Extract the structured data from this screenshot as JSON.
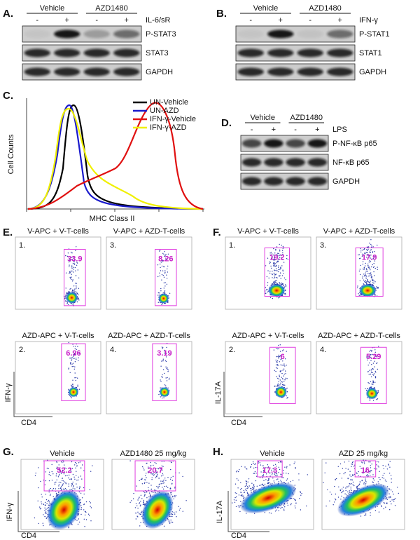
{
  "panels": {
    "a": {
      "label": "A.",
      "groups": [
        "Vehicle",
        "AZD1480"
      ],
      "lanes": [
        "-",
        "+",
        "-",
        "+"
      ],
      "treatment": "IL-6/sR",
      "bands": [
        "P-STAT3",
        "STAT3",
        "GAPDH"
      ]
    },
    "b": {
      "label": "B.",
      "groups": [
        "Vehicle",
        "AZD1480"
      ],
      "lanes": [
        "-",
        "+",
        "-",
        "+"
      ],
      "treatment": "IFN-γ",
      "bands": [
        "P-STAT1",
        "STAT1",
        "GAPDH"
      ]
    },
    "c": {
      "label": "C.",
      "y_label": "Cell Counts",
      "x_label": "MHC Class II",
      "legend": [
        {
          "name": "UN-Vehicle",
          "color": "#000000"
        },
        {
          "name": "UN-AZD",
          "color": "#1a1acc"
        },
        {
          "name": "IFN-γ-Vehicle",
          "color": "#e01010"
        },
        {
          "name": "IFN-γ-AZD",
          "color": "#f0f000"
        }
      ]
    },
    "d": {
      "label": "D.",
      "groups": [
        "Vehicle",
        "AZD1480"
      ],
      "lanes": [
        "-",
        "+",
        "-",
        "+"
      ],
      "treatment": "LPS",
      "bands": [
        "P-NF-κB p65",
        "NF-κB p65",
        "GAPDH"
      ]
    },
    "e": {
      "label": "E.",
      "y_label": "IFN-γ",
      "x_label": "CD4",
      "plots": [
        {
          "title": "V-APC + V-T-cells",
          "index": "1.",
          "gate": "33.9"
        },
        {
          "title": "V-APC + AZD-T-cells",
          "index": "3.",
          "gate": "8.26"
        },
        {
          "title": "AZD-APC + V-T-cells",
          "index": "2.",
          "gate": "6.96"
        },
        {
          "title": "AZD-APC + AZD-T-cells",
          "index": "4.",
          "gate": "3.19"
        }
      ]
    },
    "f": {
      "label": "F.",
      "y_label": "IL-17A",
      "x_label": "CD4",
      "plots": [
        {
          "title": "V-APC + V-T-cells",
          "index": "1.",
          "gate": "19.2"
        },
        {
          "title": "V-APC + AZD-T-cells",
          "index": "3.",
          "gate": "17.9"
        },
        {
          "title": "AZD-APC + V-T-cells",
          "index": "2.",
          "gate": "6"
        },
        {
          "title": "AZD-APC + AZD-T-cells",
          "index": "4.",
          "gate": "5.29"
        }
      ]
    },
    "g": {
      "label": "G.",
      "y_label": "IFN-γ",
      "x_label": "CD4",
      "plots": [
        {
          "title": "Vehicle",
          "gate": "52.2"
        },
        {
          "title": "AZD1480 25 mg/kg",
          "gate": "20.7"
        }
      ]
    },
    "h": {
      "label": "H.",
      "y_label": "IL-17A",
      "x_label": "CD4",
      "plots": [
        {
          "title": "Vehicle",
          "gate": "17.3"
        },
        {
          "title": "AZD 25 mg/kg",
          "gate": "16"
        }
      ]
    }
  }
}
